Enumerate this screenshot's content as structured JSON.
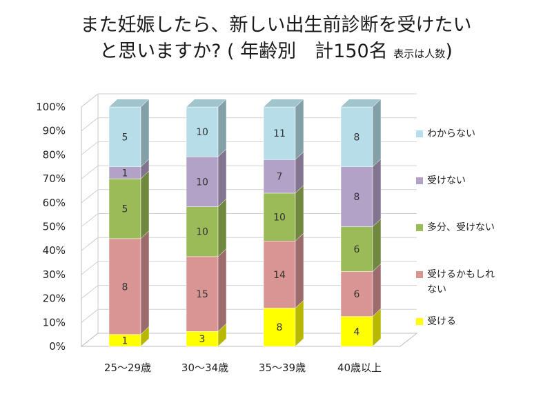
{
  "chart_data": {
    "type": "bar",
    "stacked": true,
    "percent_stacked": true,
    "three_d": true,
    "title_line1": "また妊娠したら、新しい出生前診断を受けたい",
    "title_line2": "と思いますか? ( 年齢別　計150名",
    "title_note": "表示は人数",
    "title_close": ")",
    "categories": [
      "25～29歳",
      "30～34歳",
      "35～39歳",
      "40歳以上"
    ],
    "y_ticks": [
      "0%",
      "10%",
      "20%",
      "30%",
      "40%",
      "50%",
      "60%",
      "70%",
      "80%",
      "90%",
      "100%"
    ],
    "ylim": [
      0,
      100
    ],
    "grid": true,
    "legend_position": "right",
    "series": [
      {
        "name": "受ける",
        "color": "#ffff00",
        "values": [
          1,
          3,
          8,
          4
        ]
      },
      {
        "name": "受けるかもしれない",
        "color": "#d99594",
        "values": [
          8,
          15,
          14,
          6
        ]
      },
      {
        "name": "多分、受けない",
        "color": "#9bbb59",
        "values": [
          5,
          10,
          10,
          6
        ]
      },
      {
        "name": "受けない",
        "color": "#b3a2c7",
        "values": [
          1,
          10,
          7,
          8
        ]
      },
      {
        "name": "わからない",
        "color": "#b7dee8",
        "values": [
          5,
          10,
          11,
          8
        ]
      }
    ]
  }
}
